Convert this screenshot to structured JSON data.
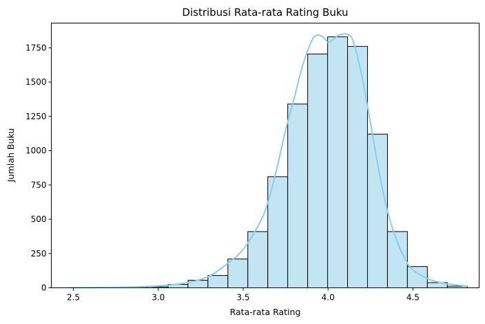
{
  "chart_data": {
    "type": "histogram",
    "title": "Distribusi Rata-rata Rating Buku",
    "xlabel": "Rata-rata Rating",
    "ylabel": "Jumlah Buku",
    "xlim": [
      2.37,
      4.89
    ],
    "ylim": [
      0,
      1930
    ],
    "xticks": [
      2.5,
      3.0,
      3.5,
      4.0,
      4.5
    ],
    "xtick_labels": [
      "2.5",
      "3.0",
      "3.5",
      "4.0",
      "4.5"
    ],
    "yticks": [
      0,
      250,
      500,
      750,
      1000,
      1250,
      1500,
      1750
    ],
    "ytick_labels": [
      "0",
      "250",
      "500",
      "750",
      "1000",
      "1250",
      "1500",
      "1750"
    ],
    "grid": false,
    "bar_fill_color": "#c3e4f3",
    "bar_edge_color": "#000000",
    "kde_color": "#87ceeb",
    "bins": [
      {
        "x0": 2.47,
        "x1": 2.5875,
        "count": 1
      },
      {
        "x0": 2.5875,
        "x1": 2.705,
        "count": 0
      },
      {
        "x0": 2.705,
        "x1": 2.8225,
        "count": 2
      },
      {
        "x0": 2.8225,
        "x1": 2.94,
        "count": 3
      },
      {
        "x0": 2.94,
        "x1": 3.0575,
        "count": 7
      },
      {
        "x0": 3.0575,
        "x1": 3.175,
        "count": 25
      },
      {
        "x0": 3.175,
        "x1": 3.2925,
        "count": 55
      },
      {
        "x0": 3.2925,
        "x1": 3.41,
        "count": 90
      },
      {
        "x0": 3.41,
        "x1": 3.5275,
        "count": 210
      },
      {
        "x0": 3.5275,
        "x1": 3.645,
        "count": 410
      },
      {
        "x0": 3.645,
        "x1": 3.7625,
        "count": 810
      },
      {
        "x0": 3.7625,
        "x1": 3.88,
        "count": 1340
      },
      {
        "x0": 3.88,
        "x1": 3.9975,
        "count": 1705
      },
      {
        "x0": 3.9975,
        "x1": 4.115,
        "count": 1830
      },
      {
        "x0": 4.115,
        "x1": 4.2325,
        "count": 1760
      },
      {
        "x0": 4.2325,
        "x1": 4.35,
        "count": 1120
      },
      {
        "x0": 4.35,
        "x1": 4.4675,
        "count": 410
      },
      {
        "x0": 4.4675,
        "x1": 4.585,
        "count": 155
      },
      {
        "x0": 4.585,
        "x1": 4.7025,
        "count": 38
      },
      {
        "x0": 4.7025,
        "x1": 4.82,
        "count": 12
      }
    ],
    "kde": {
      "x": [
        2.47,
        2.6,
        2.75,
        2.9,
        3.0,
        3.1,
        3.2,
        3.3,
        3.4,
        3.5,
        3.6,
        3.65,
        3.7,
        3.75,
        3.8,
        3.85,
        3.9,
        3.93,
        3.97,
        4.0,
        4.03,
        4.06,
        4.09,
        4.12,
        4.15,
        4.2,
        4.25,
        4.3,
        4.35,
        4.4,
        4.45,
        4.5,
        4.6,
        4.7,
        4.82
      ],
      "y": [
        1,
        2,
        4,
        8,
        14,
        25,
        45,
        85,
        170,
        280,
        480,
        640,
        880,
        1150,
        1380,
        1620,
        1790,
        1840,
        1830,
        1790,
        1810,
        1840,
        1850,
        1845,
        1790,
        1540,
        1200,
        850,
        560,
        360,
        220,
        130,
        60,
        30,
        12
      ]
    }
  }
}
